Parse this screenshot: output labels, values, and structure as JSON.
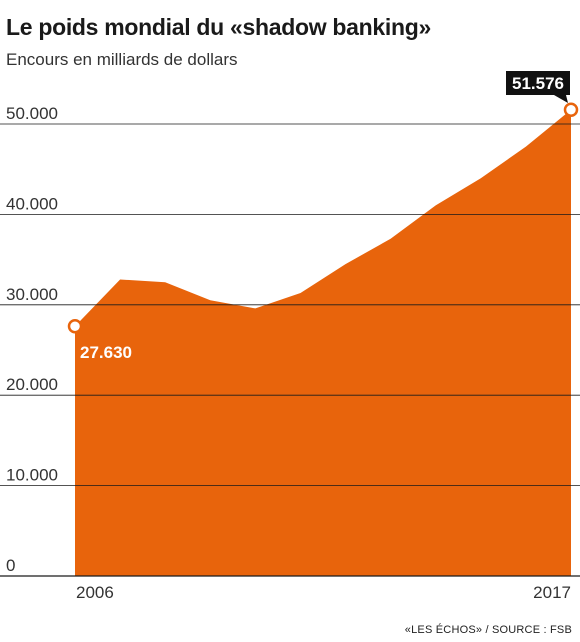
{
  "header": {
    "title": "Le poids mondial du «shadow banking»",
    "subtitle": "Encours en milliards de dollars"
  },
  "footer": {
    "source": "«LES ÉCHOS» / SOURCE : FSB"
  },
  "colors": {
    "area": "#e8640c",
    "grid": "#1a1a1a",
    "label_bg": "#111111"
  },
  "chart_data": {
    "type": "area",
    "title": "Le poids mondial du «shadow banking»",
    "subtitle": "Encours en milliards de dollars",
    "xlabel": "",
    "ylabel": "",
    "x": [
      2006,
      2007,
      2008,
      2009,
      2010,
      2011,
      2012,
      2013,
      2014,
      2015,
      2016,
      2017
    ],
    "values": [
      27630,
      32800,
      32500,
      30500,
      29600,
      31300,
      34500,
      37300,
      41000,
      44000,
      47500,
      51576
    ],
    "ylim": [
      0,
      55000
    ],
    "y_ticks": [
      0,
      10000,
      20000,
      30000,
      40000,
      50000
    ],
    "y_tick_labels": [
      "0",
      "10.000",
      "20.000",
      "30.000",
      "40.000",
      "50.000"
    ],
    "x_tick_labels": [
      "2006",
      "2017"
    ],
    "grid": true,
    "legend": "none",
    "annotations": [
      {
        "x": 2006,
        "y": 27630,
        "text": "27.630"
      },
      {
        "x": 2017,
        "y": 51576,
        "text": "51.576"
      }
    ]
  }
}
